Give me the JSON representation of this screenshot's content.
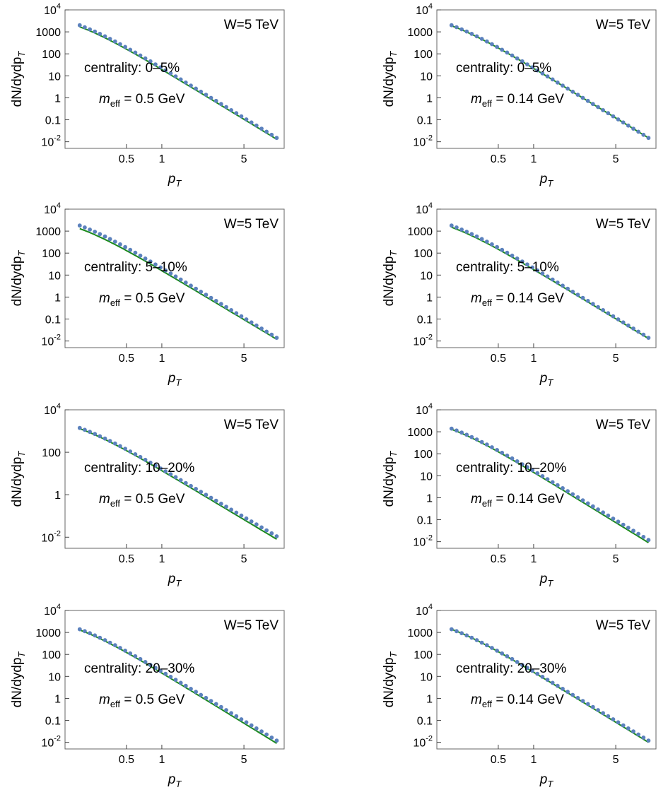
{
  "colors": {
    "points": "#5b81bd",
    "curve": "#1a8a1a",
    "frame": "#666666"
  },
  "common": {
    "ylabel": "dN/dydp",
    "ylabel_sub": "T",
    "xlabel": "p",
    "xlabel_sub": "T",
    "energy_label": "W=5 TeV",
    "meff_symbol": "m",
    "meff_sub": "eff",
    "xticks": [
      0.5,
      1,
      5
    ],
    "xlim": [
      0.15,
      11
    ],
    "xscale": "log",
    "yscale": "log"
  },
  "chart_data": [
    {
      "type": "scatter",
      "row": 0,
      "col": 0,
      "centrality": "centrality: 0–5%",
      "meff_value": " = 0.5 GeV",
      "ylim": [
        0.005,
        10000
      ],
      "yticks": [
        {
          "v": 10000,
          "m": "10",
          "e": "4"
        },
        {
          "v": 1000,
          "m": "1000"
        },
        {
          "v": 100,
          "m": "100"
        },
        {
          "v": 10,
          "m": "10"
        },
        {
          "v": 1,
          "m": "1"
        },
        {
          "v": 0.1,
          "m": "0.1"
        },
        {
          "v": 0.01,
          "m": "10",
          "e": "-2"
        }
      ],
      "point_x": [
        0.2,
        9.5
      ],
      "point_y": [
        2000,
        0.015
      ],
      "curve_x": [
        0.2,
        9.5
      ],
      "curve_y": [
        1700,
        0.013
      ]
    },
    {
      "type": "scatter",
      "row": 0,
      "col": 1,
      "centrality": "centrality: 0–5%",
      "meff_value": " = 0.14 GeV",
      "ylim": [
        0.005,
        10000
      ],
      "yticks": [
        {
          "v": 10000,
          "m": "10",
          "e": "4"
        },
        {
          "v": 1000,
          "m": "1000"
        },
        {
          "v": 100,
          "m": "100"
        },
        {
          "v": 10,
          "m": "10"
        },
        {
          "v": 1,
          "m": "1"
        },
        {
          "v": 0.1,
          "m": "0.1"
        },
        {
          "v": 0.01,
          "m": "10",
          "e": "-2"
        }
      ],
      "point_x": [
        0.2,
        9.5
      ],
      "point_y": [
        2000,
        0.015
      ],
      "curve_x": [
        0.2,
        9.5
      ],
      "curve_y": [
        1900,
        0.015
      ]
    },
    {
      "type": "scatter",
      "row": 1,
      "col": 0,
      "centrality": "centrality: 5–10%",
      "meff_value": " = 0.5 GeV",
      "ylim": [
        0.005,
        10000
      ],
      "yticks": [
        {
          "v": 10000,
          "m": "10",
          "e": "4"
        },
        {
          "v": 1000,
          "m": "1000"
        },
        {
          "v": 100,
          "m": "100"
        },
        {
          "v": 10,
          "m": "10"
        },
        {
          "v": 1,
          "m": "1"
        },
        {
          "v": 0.1,
          "m": "0.1"
        },
        {
          "v": 0.01,
          "m": "10",
          "e": "-2"
        }
      ],
      "point_x": [
        0.2,
        9.5
      ],
      "point_y": [
        1800,
        0.014
      ],
      "curve_x": [
        0.2,
        9.5
      ],
      "curve_y": [
        1300,
        0.012
      ]
    },
    {
      "type": "scatter",
      "row": 1,
      "col": 1,
      "centrality": "centrality: 5–10%",
      "meff_value": " = 0.14 GeV",
      "ylim": [
        0.005,
        10000
      ],
      "yticks": [
        {
          "v": 10000,
          "m": "10",
          "e": "4"
        },
        {
          "v": 1000,
          "m": "1000"
        },
        {
          "v": 100,
          "m": "100"
        },
        {
          "v": 10,
          "m": "10"
        },
        {
          "v": 1,
          "m": "1"
        },
        {
          "v": 0.1,
          "m": "0.1"
        },
        {
          "v": 0.01,
          "m": "10",
          "e": "-2"
        }
      ],
      "point_x": [
        0.2,
        9.5
      ],
      "point_y": [
        1800,
        0.014
      ],
      "curve_x": [
        0.2,
        9.5
      ],
      "curve_y": [
        1500,
        0.013
      ]
    },
    {
      "type": "scatter",
      "row": 2,
      "col": 0,
      "centrality": "centrality: 10–20%",
      "meff_value": " = 0.5 GeV",
      "ylim": [
        0.003,
        10000
      ],
      "yticks": [
        {
          "v": 10000,
          "m": "10",
          "e": "4"
        },
        {
          "v": 100,
          "m": "100"
        },
        {
          "v": 1,
          "m": "1"
        },
        {
          "v": 0.01,
          "m": "10",
          "e": "-2"
        }
      ],
      "point_x": [
        0.2,
        9.5
      ],
      "point_y": [
        1400,
        0.011
      ],
      "curve_x": [
        0.2,
        9.5
      ],
      "curve_y": [
        1300,
        0.008
      ]
    },
    {
      "type": "scatter",
      "row": 2,
      "col": 1,
      "centrality": "centrality: 10–20%",
      "meff_value": " = 0.14 GeV",
      "ylim": [
        0.005,
        10000
      ],
      "yticks": [
        {
          "v": 10000,
          "m": "10",
          "e": "4"
        },
        {
          "v": 1000,
          "m": "1000"
        },
        {
          "v": 100,
          "m": "100"
        },
        {
          "v": 10,
          "m": "10"
        },
        {
          "v": 1,
          "m": "1"
        },
        {
          "v": 0.1,
          "m": "0.1"
        },
        {
          "v": 0.01,
          "m": "10",
          "e": "-2"
        }
      ],
      "point_x": [
        0.2,
        9.5
      ],
      "point_y": [
        1400,
        0.012
      ],
      "curve_x": [
        0.2,
        9.5
      ],
      "curve_y": [
        1300,
        0.009
      ]
    },
    {
      "type": "scatter",
      "row": 3,
      "col": 0,
      "centrality": "centrality: 20–30%",
      "meff_value": " = 0.5 GeV",
      "ylim": [
        0.005,
        10000
      ],
      "yticks": [
        {
          "v": 10000,
          "m": "10",
          "e": "4"
        },
        {
          "v": 1000,
          "m": "1000"
        },
        {
          "v": 100,
          "m": "100"
        },
        {
          "v": 10,
          "m": "10"
        },
        {
          "v": 1,
          "m": "1"
        },
        {
          "v": 0.1,
          "m": "0.1"
        },
        {
          "v": 0.01,
          "m": "10",
          "e": "-2"
        }
      ],
      "point_x": [
        0.2,
        9.5
      ],
      "point_y": [
        1400,
        0.012
      ],
      "curve_x": [
        0.2,
        9.5
      ],
      "curve_y": [
        1300,
        0.009
      ]
    },
    {
      "type": "scatter",
      "row": 3,
      "col": 1,
      "centrality": "centrality: 20–30%",
      "meff_value": " = 0.14 GeV",
      "ylim": [
        0.005,
        10000
      ],
      "yticks": [
        {
          "v": 10000,
          "m": "10",
          "e": "4"
        },
        {
          "v": 1000,
          "m": "1000"
        },
        {
          "v": 100,
          "m": "100"
        },
        {
          "v": 10,
          "m": "10"
        },
        {
          "v": 1,
          "m": "1"
        },
        {
          "v": 0.1,
          "m": "0.1"
        },
        {
          "v": 0.01,
          "m": "10",
          "e": "-2"
        }
      ],
      "point_x": [
        0.2,
        9.5
      ],
      "point_y": [
        1400,
        0.012
      ],
      "curve_x": [
        0.2,
        9.5
      ],
      "curve_y": [
        1400,
        0.01
      ]
    }
  ]
}
